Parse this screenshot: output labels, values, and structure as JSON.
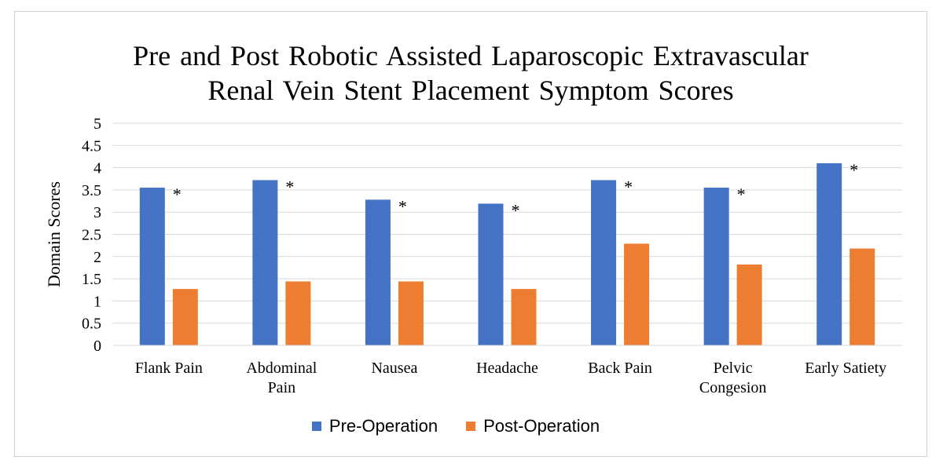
{
  "chart_data": {
    "type": "bar",
    "title": "Pre and Post Robotic Assisted Laparoscopic Extravascular Renal Vein Stent Placement Symptom Scores",
    "title_lines": [
      "Pre and Post Robotic Assisted Laparoscopic  Extravascular",
      "Renal Vein Stent Placement Symptom Scores"
    ],
    "ylabel": "Domain Scores",
    "xlabel": "",
    "ylim": [
      0,
      5
    ],
    "yticks": [
      "0",
      "0.5",
      "1",
      "1.5",
      "2",
      "2.5",
      "3",
      "3.5",
      "4",
      "4.5",
      "5"
    ],
    "grid": true,
    "legend_position": "bottom",
    "categories": [
      "Flank Pain",
      "Abdominal Pain",
      "Nausea",
      "Headache",
      "Back Pain",
      "Pelvic Congesion",
      "Early Satiety"
    ],
    "category_lines": [
      [
        "Flank Pain"
      ],
      [
        "Abdominal",
        "Pain"
      ],
      [
        "Nausea"
      ],
      [
        "Headache"
      ],
      [
        "Back Pain"
      ],
      [
        "Pelvic",
        "Congesion"
      ],
      [
        "Early Satiety"
      ]
    ],
    "series": [
      {
        "name": "Pre-Operation",
        "color": "#4472c4",
        "values": [
          3.55,
          3.72,
          3.28,
          3.19,
          3.72,
          3.55,
          4.1
        ]
      },
      {
        "name": "Post-Operation",
        "color": "#ed7d31",
        "values": [
          1.27,
          1.44,
          1.44,
          1.27,
          2.29,
          1.82,
          2.18
        ]
      }
    ],
    "annotations": [
      "*",
      "*",
      "*",
      "*",
      "*",
      "*",
      "*"
    ]
  }
}
